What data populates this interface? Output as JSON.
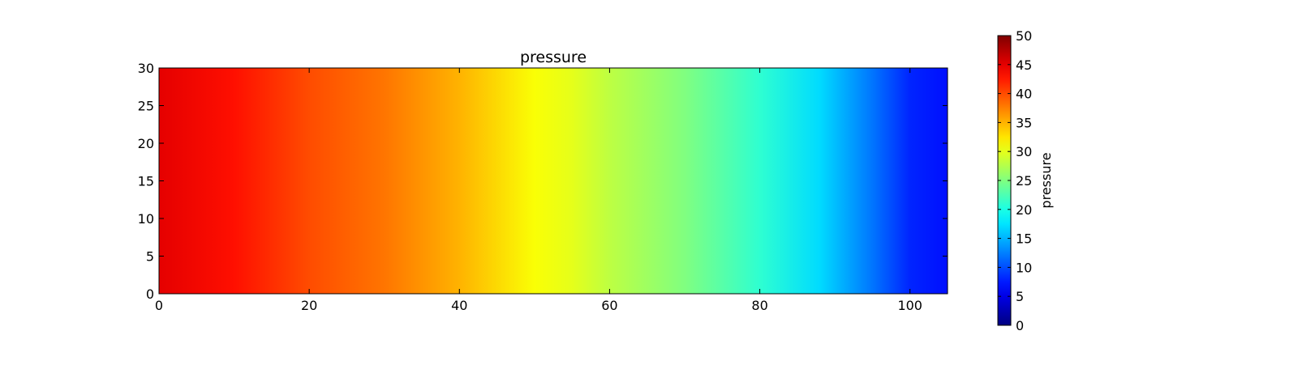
{
  "chart_data": {
    "type": "heatmap",
    "title": "pressure",
    "xlabel": "",
    "ylabel": "",
    "xlim": [
      0,
      105
    ],
    "ylim": [
      0,
      30
    ],
    "x_ticks": [
      "0",
      "20",
      "40",
      "60",
      "80",
      "100"
    ],
    "x_tick_values": [
      0,
      20,
      40,
      60,
      80,
      100
    ],
    "y_ticks": [
      "0",
      "5",
      "10",
      "15",
      "20",
      "25",
      "30"
    ],
    "y_tick_values": [
      0,
      5,
      10,
      15,
      20,
      25,
      30
    ],
    "colormap": "jet",
    "colorbar": {
      "label": "pressure",
      "range": [
        0,
        50
      ],
      "ticks": [
        "0",
        "5",
        "10",
        "15",
        "20",
        "25",
        "30",
        "35",
        "40",
        "45",
        "50"
      ],
      "tick_values": [
        0,
        5,
        10,
        15,
        20,
        25,
        30,
        35,
        40,
        45,
        50
      ]
    },
    "field": {
      "description_axis": "x",
      "x": [
        0,
        10,
        20,
        30,
        40,
        50,
        55,
        60,
        70,
        80,
        88,
        95,
        100,
        105
      ],
      "values": [
        45,
        43,
        40,
        38,
        35,
        31,
        30,
        28,
        25,
        21,
        17,
        12,
        8,
        7
      ]
    }
  }
}
